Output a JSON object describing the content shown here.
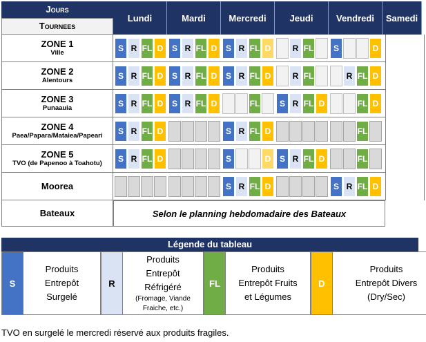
{
  "header": {
    "jours": "Jours",
    "tournees": "Tournees",
    "days": [
      "Lundi",
      "Mardi",
      "Mercredi",
      "Jeudi",
      "Vendredi",
      "Samedi"
    ]
  },
  "rows": [
    {
      "zone": "ZONE 1",
      "sub": "Ville",
      "cells": [
        "S",
        "R",
        "FL",
        "D",
        "S",
        "R",
        "FL",
        "D",
        "S",
        "R",
        "FL",
        "Dl",
        "",
        "R",
        "FL",
        "",
        "S",
        "",
        "",
        "D"
      ]
    },
    {
      "zone": "ZONE 2",
      "sub": "Alentours",
      "cells": [
        "S",
        "R",
        "FL",
        "D",
        "S",
        "R",
        "FL",
        "D",
        "S",
        "R",
        "FL",
        "D",
        "",
        "R",
        "FL",
        "",
        "",
        "R",
        "FL",
        "D"
      ]
    },
    {
      "zone": "ZONE 3",
      "sub": "Punaauia",
      "cells": [
        "S",
        "R",
        "FL",
        "D",
        "S",
        "R",
        "FL",
        "D",
        "",
        "",
        "FL",
        "",
        "S",
        "R",
        "FL",
        "D",
        "",
        "",
        "FL",
        "D"
      ]
    },
    {
      "zone": "ZONE 4",
      "sub": "Paea/Papara/Mataiea/Papeari",
      "cells": [
        "S",
        "R",
        "FL",
        "D",
        "g",
        "g",
        "g",
        "g",
        "S",
        "R",
        "FL",
        "D",
        "g",
        "g",
        "g",
        "g",
        "g",
        "g",
        "FL",
        "g"
      ]
    },
    {
      "zone": "ZONE 5",
      "sub": "TVO (de Papenoo à Toahotu)",
      "cells": [
        "S",
        "R",
        "FL",
        "D",
        "g",
        "g",
        "g",
        "g",
        "S",
        "",
        "",
        "Dl",
        "S",
        "R",
        "FL",
        "D",
        "g",
        "g",
        "FL",
        "g"
      ]
    },
    {
      "zone": "Moorea",
      "sub": "",
      "cells": [
        "g",
        "g",
        "g",
        "g",
        "g",
        "g",
        "g",
        "g",
        "S",
        "R",
        "FL",
        "D",
        "g",
        "g",
        "g",
        "g",
        "S",
        "R",
        "FL",
        "D"
      ]
    },
    {
      "zone": "Bateaux",
      "sub": "",
      "note": "Selon le planning hebdomadaire des Bateaux"
    }
  ],
  "legend": {
    "title": "Légende du tableau",
    "items": [
      {
        "key": "S",
        "lines": [
          "Produits",
          "Entrepôt",
          "Surgelé"
        ],
        "small": ""
      },
      {
        "key": "R",
        "lines": [
          "Produits",
          "Entrepôt",
          "Réfrigéré"
        ],
        "small": "(Fromage, Viande Fraiche, etc.)"
      },
      {
        "key": "FL",
        "lines": [
          "Produits",
          "Entrepôt Fruits",
          "et Légumes"
        ],
        "small": ""
      },
      {
        "key": "D",
        "lines": [
          "Produits",
          "Entrepôt Divers",
          "(Dry/Sec)"
        ],
        "small": ""
      }
    ]
  },
  "footnote": "TVO en surgelé le mercredi réservé aux produits fragiles.",
  "colors": {
    "S": "#4472c4",
    "R": "#dae3f3",
    "FL": "#70ad47",
    "D": "#ffc000",
    "header": "#1f3364"
  }
}
